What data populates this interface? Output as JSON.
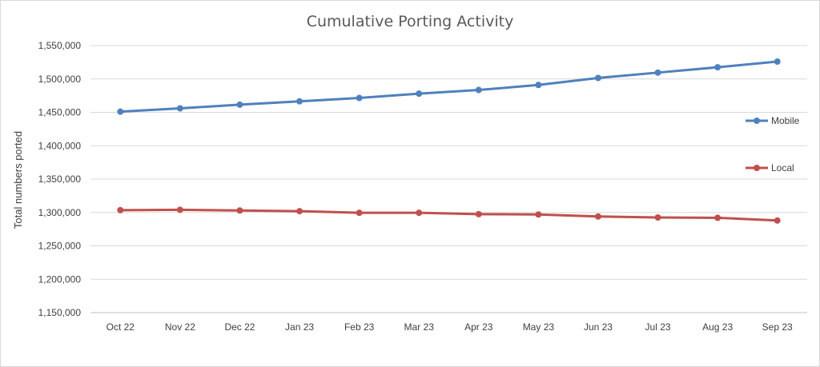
{
  "chart_data": {
    "type": "line",
    "title": "Cumulative Porting Activity",
    "xlabel": "",
    "ylabel": "Total numbers ported",
    "categories": [
      "Oct 22",
      "Nov 22",
      "Dec 22",
      "Jan 23",
      "Feb 23",
      "Mar 23",
      "Apr 23",
      "May 23",
      "Jun 23",
      "Jul 23",
      "Aug 23",
      "Sep 23"
    ],
    "ylim": [
      1150000,
      1550000
    ],
    "yticks": [
      "1,150,000",
      "1,200,000",
      "1,250,000",
      "1,300,000",
      "1,350,000",
      "1,400,000",
      "1,450,000",
      "1,500,000",
      "1,550,000"
    ],
    "grid": true,
    "legend_position": "right",
    "series": [
      {
        "name": "Mobile",
        "color": "#4f81bd",
        "values": [
          1451000,
          1456000,
          1461500,
          1466500,
          1471500,
          1478000,
          1483500,
          1491000,
          1501500,
          1509500,
          1517500,
          1526000
        ]
      },
      {
        "name": "Local",
        "color": "#c0504d",
        "values": [
          1303500,
          1304000,
          1303000,
          1302000,
          1299500,
          1299500,
          1297500,
          1297000,
          1294000,
          1292500,
          1292000,
          1288000
        ]
      }
    ]
  }
}
